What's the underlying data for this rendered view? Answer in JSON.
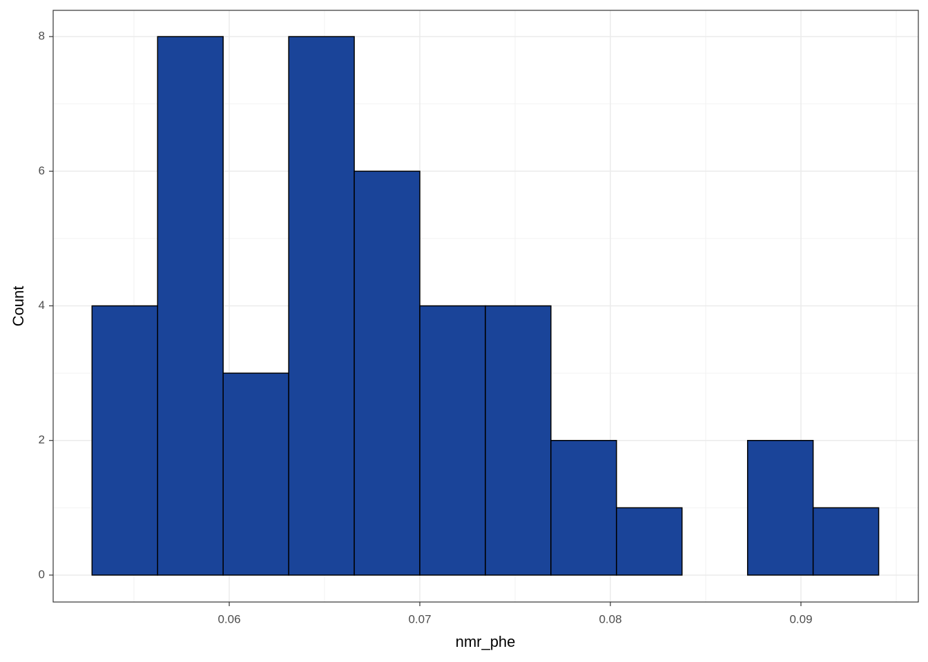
{
  "chart_data": {
    "type": "histogram",
    "x_label": "nmr_phe",
    "y_label": "Count",
    "bins": [
      0.0528,
      0.05624,
      0.05968,
      0.06312,
      0.06656,
      0.07,
      0.07344,
      0.07688,
      0.08032,
      0.08376,
      0.0872,
      0.09064,
      0.09408
    ],
    "counts": [
      4,
      8,
      3,
      8,
      6,
      4,
      4,
      2,
      1,
      0,
      2,
      1
    ],
    "color": "#1a4499",
    "edge_color": "#000000",
    "xlim": [
      0.05076,
      0.09616
    ],
    "xticks": [
      0.06,
      0.07,
      0.08,
      0.09
    ],
    "ylim": [
      -0.4,
      8.39
    ],
    "yticks": [
      0,
      2,
      4,
      6,
      8
    ],
    "grid": true
  }
}
